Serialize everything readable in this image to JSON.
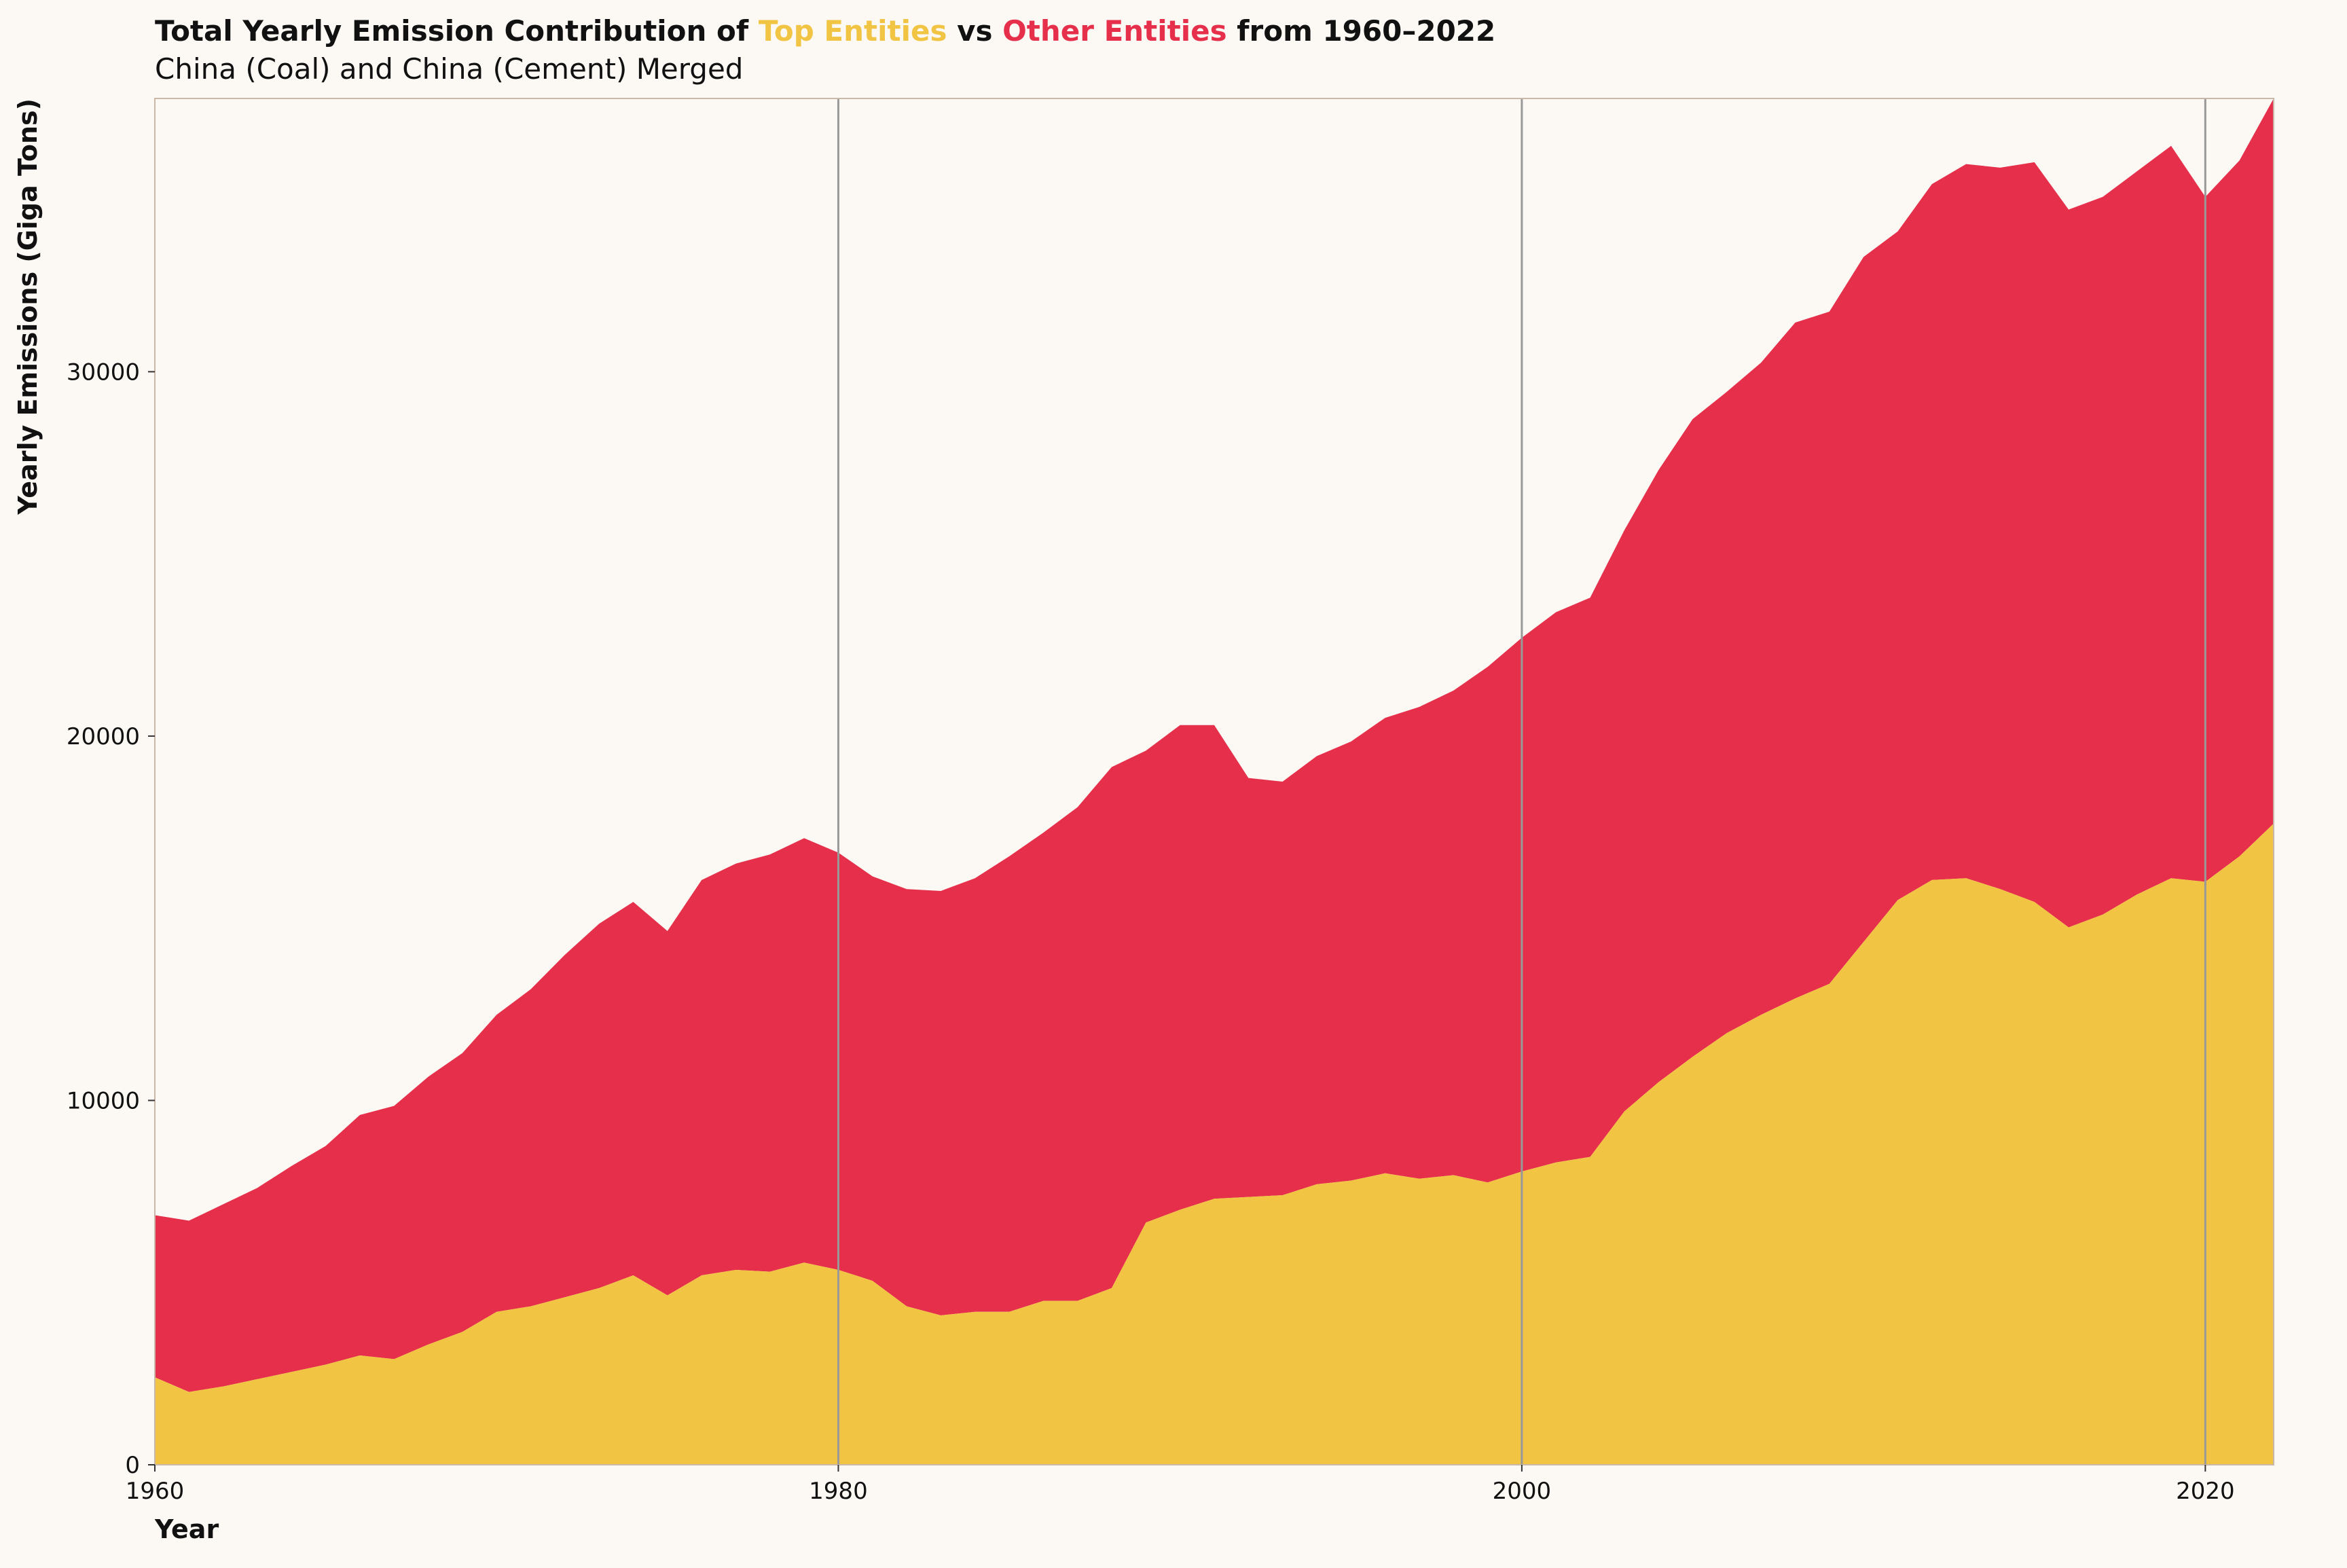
{
  "chart_data": {
    "type": "area",
    "stacked": true,
    "title": {
      "prefix": "Total Yearly Emission Contribution of ",
      "series_a": "Top Entities",
      "middle": " vs ",
      "series_b": "Other Entities",
      "suffix": " from 1960–2022"
    },
    "subtitle": "China (Coal) and China (Cement) Merged",
    "xlabel": "Year",
    "ylabel": "Yearly Emissions (Giga Tons)",
    "xlim": [
      1960,
      2022
    ],
    "ylim": [
      0,
      37500
    ],
    "xticks": [
      1960,
      1980,
      2000,
      2020
    ],
    "yticks": [
      0,
      10000,
      20000,
      30000
    ],
    "vlines": [
      1980,
      2000,
      2020
    ],
    "colors": {
      "top": "#f2c443",
      "other": "#e6304b",
      "background": "#fcf8f4",
      "vline": "#999999"
    },
    "x": [
      1960,
      1961,
      1962,
      1963,
      1964,
      1965,
      1966,
      1967,
      1968,
      1969,
      1970,
      1971,
      1972,
      1973,
      1974,
      1975,
      1976,
      1977,
      1978,
      1979,
      1980,
      1981,
      1982,
      1983,
      1984,
      1985,
      1986,
      1987,
      1988,
      1989,
      1990,
      1991,
      1992,
      1993,
      1994,
      1995,
      1996,
      1997,
      1998,
      1999,
      2000,
      2001,
      2002,
      2003,
      2004,
      2005,
      2006,
      2007,
      2008,
      2009,
      2010,
      2011,
      2012,
      2013,
      2014,
      2015,
      2016,
      2017,
      2018,
      2019,
      2020,
      2021,
      2022
    ],
    "series": [
      {
        "name": "Top Entities",
        "values": [
          2400,
          2000,
          2150,
          2350,
          2550,
          2750,
          3000,
          2900,
          3300,
          3650,
          4200,
          4350,
          4600,
          4850,
          5200,
          4650,
          5200,
          5350,
          5300,
          5550,
          5350,
          5050,
          4350,
          4100,
          4200,
          4200,
          4500,
          4500,
          4850,
          6650,
          7000,
          7300,
          7350,
          7400,
          7700,
          7800,
          8000,
          7850,
          7950,
          7750,
          8050,
          8300,
          8450,
          9700,
          10500,
          11200,
          11850,
          12350,
          12800,
          13200,
          14350,
          15500,
          16050,
          16100,
          15800,
          15450,
          14750,
          15100,
          15650,
          16100,
          16000,
          16700,
          17600
        ]
      },
      {
        "name": "Other Entities",
        "values": [
          4450,
          4700,
          5000,
          5250,
          5650,
          6000,
          6600,
          6950,
          7350,
          7650,
          8150,
          8700,
          9400,
          10000,
          10250,
          10000,
          10850,
          11150,
          11450,
          11650,
          11450,
          11100,
          11450,
          11650,
          11900,
          12500,
          12850,
          13550,
          14300,
          12950,
          13300,
          13000,
          11500,
          11350,
          11750,
          12050,
          12500,
          12950,
          13300,
          14150,
          14650,
          15100,
          15350,
          15950,
          16800,
          17500,
          17600,
          17900,
          18550,
          18450,
          18800,
          18350,
          19100,
          19600,
          19800,
          20300,
          19700,
          19700,
          19850,
          20100,
          18800,
          19100,
          19900
        ]
      }
    ]
  }
}
